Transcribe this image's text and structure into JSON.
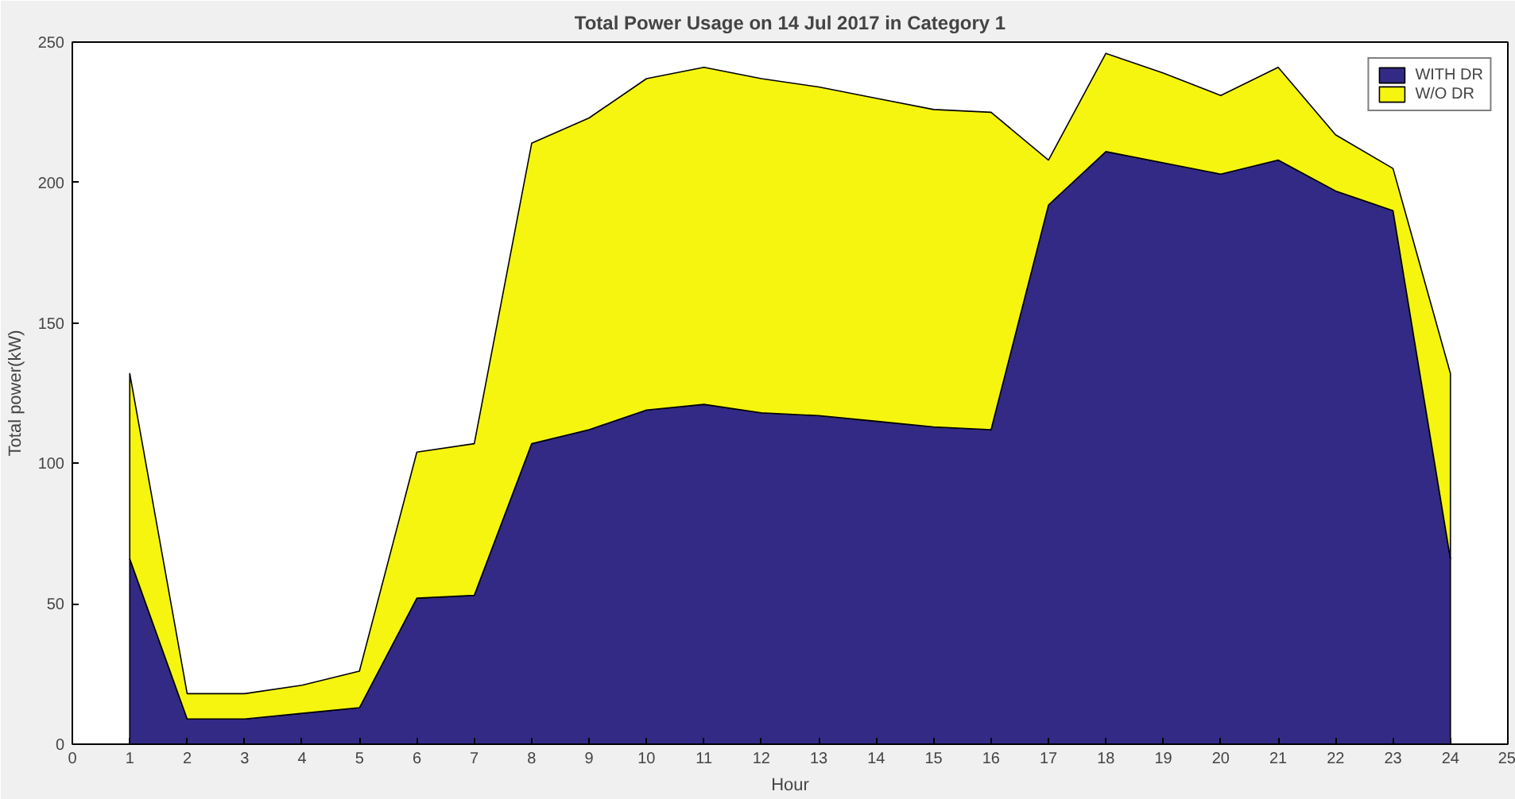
{
  "chart_data": {
    "type": "area",
    "title": "Total Power Usage on 14 Jul 2017 in Category 1",
    "xlabel": "Hour",
    "ylabel": "Total power(kW)",
    "x": [
      1,
      2,
      3,
      4,
      5,
      6,
      7,
      8,
      9,
      10,
      11,
      12,
      13,
      14,
      15,
      16,
      17,
      18,
      19,
      20,
      21,
      22,
      23,
      24
    ],
    "stacked": true,
    "series": [
      {
        "name": "WITH DR",
        "color": "#332a86",
        "values": [
          66,
          9,
          9,
          11,
          13,
          52,
          53,
          107,
          112,
          119,
          121,
          118,
          117,
          115,
          113,
          112,
          192,
          211,
          207,
          203,
          208,
          197,
          190,
          66
        ]
      },
      {
        "name": "W/O DR",
        "color": "#f5f50f",
        "values": [
          66,
          9,
          9,
          10,
          13,
          52,
          54,
          107,
          111,
          118,
          120,
          119,
          117,
          115,
          113,
          113,
          16,
          35,
          32,
          28,
          33,
          20,
          15,
          66
        ]
      }
    ],
    "xlim": [
      0,
      25
    ],
    "xticks": [
      0,
      1,
      2,
      3,
      4,
      5,
      6,
      7,
      8,
      9,
      10,
      11,
      12,
      13,
      14,
      15,
      16,
      17,
      18,
      19,
      20,
      21,
      22,
      23,
      24,
      25
    ],
    "ylim": [
      0,
      250
    ],
    "yticks": [
      0,
      50,
      100,
      150,
      200,
      250
    ],
    "grid": false,
    "legend": "top right"
  }
}
